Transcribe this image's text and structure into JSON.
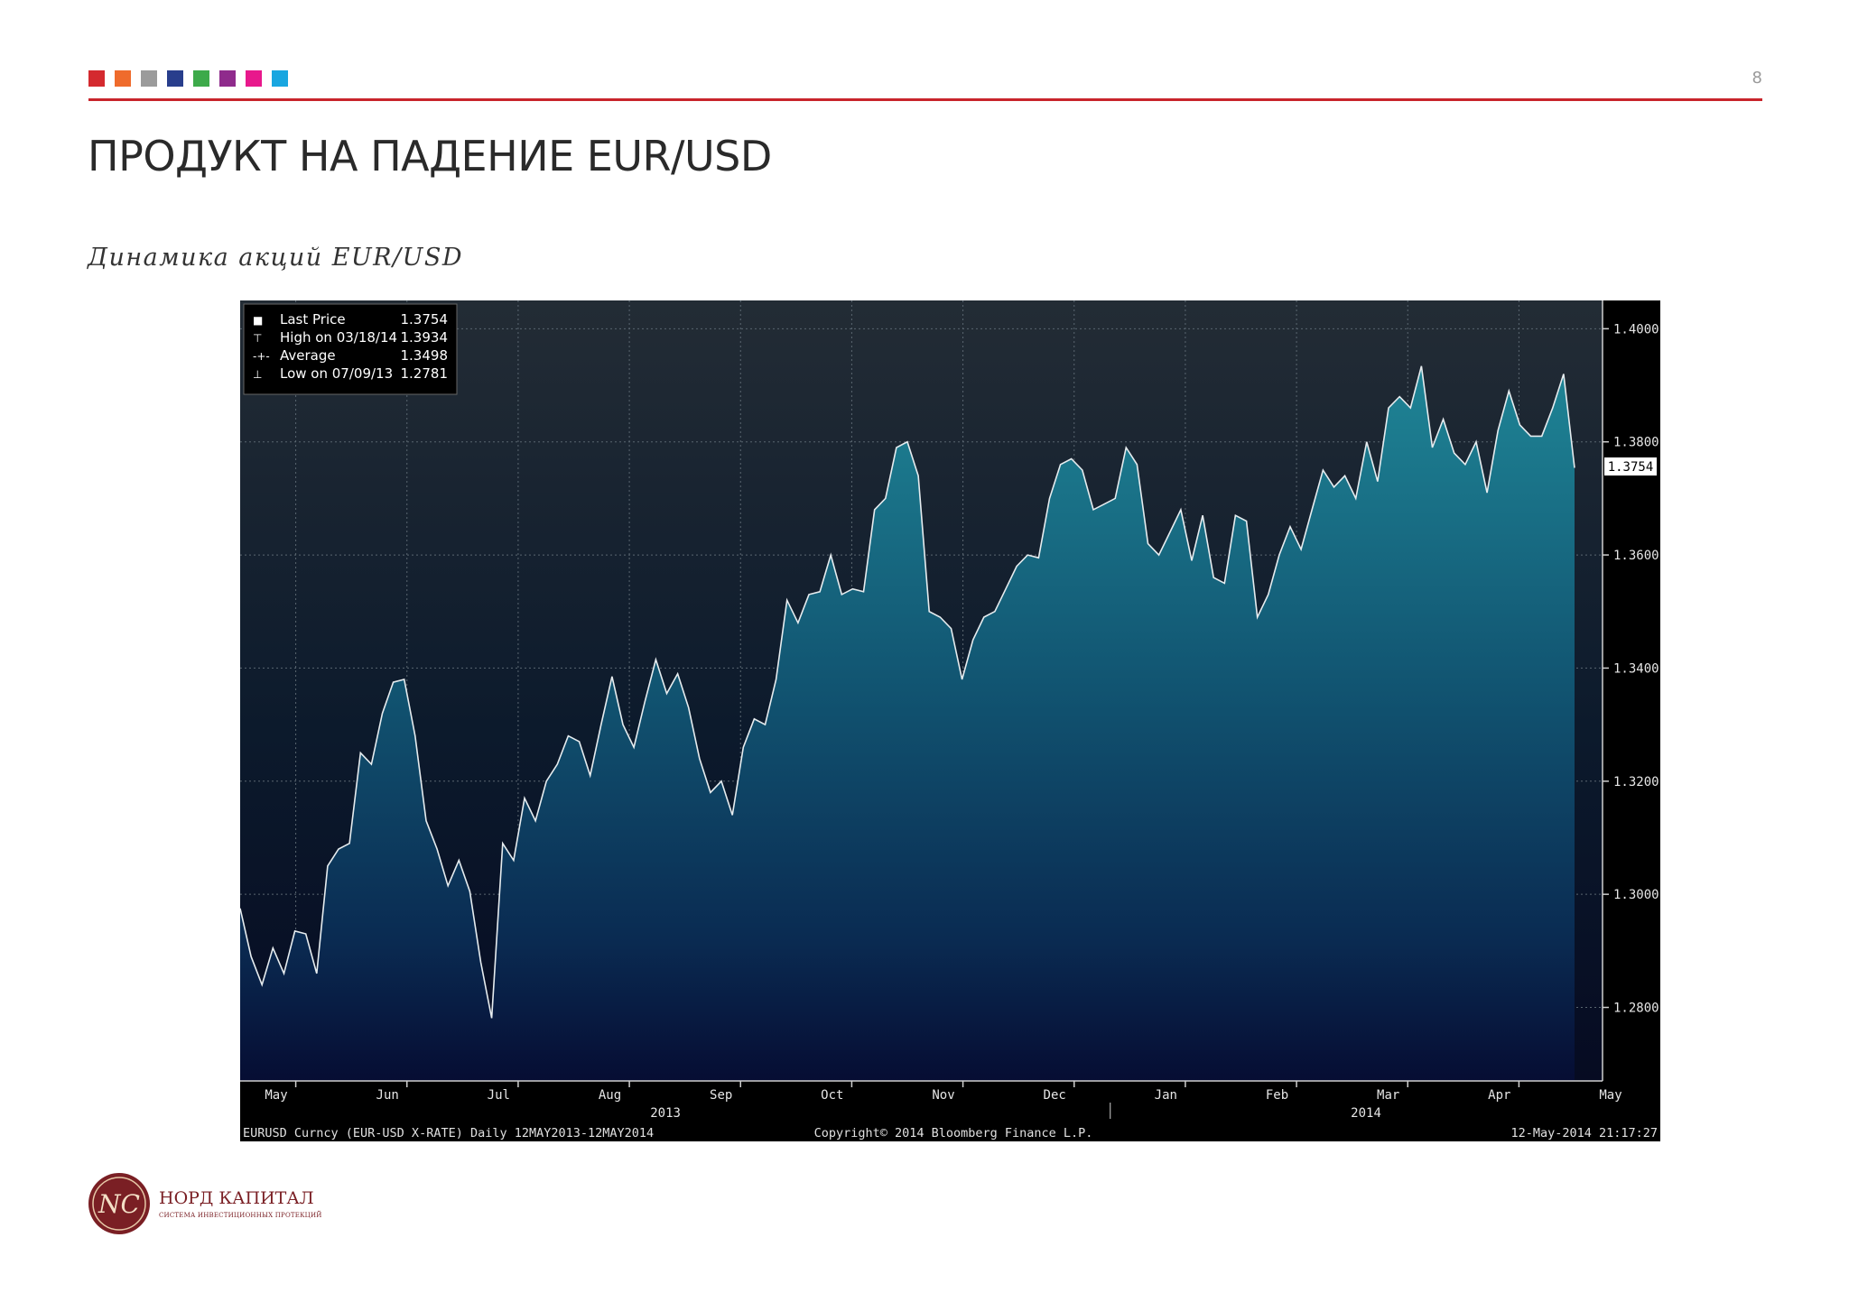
{
  "header": {
    "page_number": "8",
    "color_squares": [
      "#d42a2f",
      "#ef6b2c",
      "#9b9b9b",
      "#283e8c",
      "#3daa4a",
      "#8f2b8c",
      "#e8188c",
      "#19a6e0"
    ],
    "accent_color": "#c8242b"
  },
  "slide": {
    "title": "ПРОДУКТ НА ПАДЕНИЕ EUR/USD",
    "subtitle": "Динамика акций EUR/USD"
  },
  "chart_data": {
    "type": "area",
    "ylim": [
      1.267,
      1.405
    ],
    "y_ticks": [
      "1.2800",
      "1.3000",
      "1.3200",
      "1.3400",
      "1.3600",
      "1.3800",
      "1.4000"
    ],
    "x_months": [
      "May",
      "Jun",
      "Jul",
      "Aug",
      "Sep",
      "Oct",
      "Nov",
      "Dec",
      "Jan",
      "Feb",
      "Mar",
      "Apr",
      "May"
    ],
    "x_years": [
      "2013",
      "2014"
    ],
    "last_price_tag": "1.3754",
    "legend": [
      {
        "icon": "■",
        "label": "Last Price",
        "value": "1.3754"
      },
      {
        "icon": "⊤",
        "label": "High on 03/18/14",
        "value": "1.3934"
      },
      {
        "icon": "-+-",
        "label": "Average",
        "value": "1.3498"
      },
      {
        "icon": "⊥",
        "label": "Low on 07/09/13",
        "value": "1.2781"
      }
    ],
    "footer": {
      "left": "EURUSD Curncy (EUR-USD X-RATE)  Daily 12MAY2013-12MAY2014",
      "center": "Copyright© 2014 Bloomberg Finance L.P.",
      "right": "12-May-2014 21:17:27"
    },
    "x_unit": "day index from start of series",
    "x": [
      0,
      3,
      6,
      9,
      12,
      15,
      18,
      21,
      24,
      27,
      30,
      33,
      36,
      39,
      42,
      45,
      48,
      51,
      54,
      57,
      60,
      63,
      66,
      69,
      72,
      75,
      78,
      81,
      84,
      87,
      90,
      93,
      96,
      99,
      102,
      105,
      108,
      111,
      114,
      117,
      120,
      123,
      126,
      129,
      132,
      135,
      138,
      141,
      144,
      147,
      150,
      153,
      156,
      159,
      162,
      165,
      168,
      171,
      174,
      177,
      180,
      183,
      186,
      189,
      192,
      195,
      198,
      201,
      204,
      207,
      210,
      213,
      216,
      219,
      222,
      225,
      228,
      231,
      234,
      237,
      240,
      243,
      246,
      249,
      252,
      255,
      258,
      261,
      264,
      267,
      270,
      273,
      276,
      279,
      282,
      285,
      288,
      291,
      294,
      297,
      300,
      303,
      306,
      309,
      312,
      315,
      318,
      321,
      324,
      327,
      330,
      333,
      336,
      339,
      342,
      345,
      348,
      351,
      354,
      357,
      360,
      363,
      366
    ],
    "values": [
      1.2975,
      1.289,
      1.284,
      1.2905,
      1.286,
      1.2935,
      1.293,
      1.286,
      1.305,
      1.308,
      1.309,
      1.325,
      1.323,
      1.332,
      1.3375,
      1.338,
      1.328,
      1.313,
      1.308,
      1.3015,
      1.306,
      1.3005,
      1.288,
      1.2781,
      1.309,
      1.306,
      1.317,
      1.313,
      1.32,
      1.323,
      1.328,
      1.327,
      1.321,
      1.33,
      1.3385,
      1.33,
      1.326,
      1.334,
      1.3415,
      1.3355,
      1.339,
      1.333,
      1.324,
      1.318,
      1.32,
      1.314,
      1.326,
      1.331,
      1.33,
      1.338,
      1.352,
      1.348,
      1.353,
      1.3535,
      1.36,
      1.353,
      1.354,
      1.3535,
      1.368,
      1.37,
      1.379,
      1.38,
      1.374,
      1.35,
      1.349,
      1.347,
      1.338,
      1.345,
      1.349,
      1.35,
      1.354,
      1.358,
      1.36,
      1.3595,
      1.37,
      1.376,
      1.377,
      1.375,
      1.368,
      1.369,
      1.37,
      1.379,
      1.376,
      1.362,
      1.36,
      1.364,
      1.368,
      1.359,
      1.367,
      1.356,
      1.355,
      1.367,
      1.366,
      1.349,
      1.353,
      1.36,
      1.365,
      1.361,
      1.368,
      1.375,
      1.372,
      1.374,
      1.37,
      1.38,
      1.373,
      1.386,
      1.388,
      1.386,
      1.3934,
      1.379,
      1.384,
      1.378,
      1.376,
      1.38,
      1.371,
      1.382,
      1.389,
      1.383,
      1.381,
      1.381,
      1.386,
      1.392,
      1.3754
    ]
  },
  "logo": {
    "name": "НОРД КАПИТАЛ",
    "tagline": "СИСТЕМА ИНВЕСТИЦИОННЫХ ПРОТЕКЦИЙ",
    "monogram": "NC"
  }
}
